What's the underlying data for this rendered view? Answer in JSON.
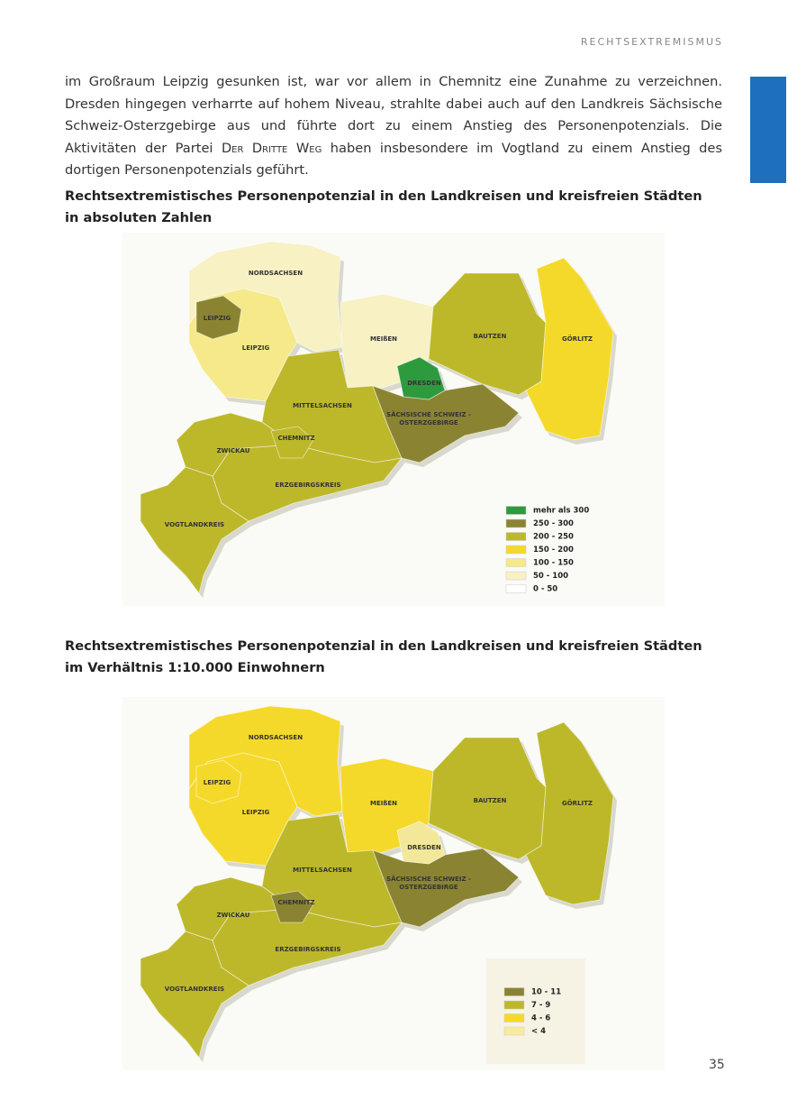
{
  "header": {
    "section": "RECHTSEXTREMISMUS"
  },
  "body": {
    "paragraph": [
      "im Großraum Leipzig gesunken ist, war vor allem in Chemnitz eine Zunahme zu verzeichnen. Dresden hingegen verharrte auf hohem Niveau, strahlte dabei auch auf den Landkreis Sächsische Schweiz-Osterzgebirge aus und führte dort zu einem Anstieg des Personenpotenzials. Die Aktivitäten der Partei ",
      "Der Dritte Weg",
      " haben insbesondere im Vogtland zu einem Anstieg des dortigen Personenpotenzials geführt."
    ]
  },
  "maps": [
    {
      "title": [
        "Rechtsextremistisches Personenpotenzial in den Landkreisen und kreisfreien Städten",
        "in absoluten Zahlen"
      ],
      "regions": [
        "NORDSACHSEN",
        "LEIPZIG",
        "LEIPZIG",
        "MEIßEN",
        "BAUTZEN",
        "GÖRLITZ",
        "DRESDEN",
        "SÄCHSISCHE SCHWEIZ -",
        "OSTERZGEBIRGE",
        "MITTELSACHSEN",
        "CHEMNITZ",
        "ZWICKAU",
        "ERZGEBIRGSKREIS",
        "VOGTLANDKREIS"
      ],
      "legend": [
        "mehr als 300",
        "250 - 300",
        "200 - 250",
        "150 - 200",
        "100 - 150",
        "50 - 100",
        "0 - 50"
      ]
    },
    {
      "title": [
        "Rechtsextremistisches Personenpotenzial in den Landkreisen und kreisfreien Städten",
        "im Verhältnis 1:10.000 Einwohnern"
      ],
      "regions": [
        "NORDSACHSEN",
        "LEIPZIG",
        "LEIPZIG",
        "MEIßEN",
        "BAUTZEN",
        "GÖRLITZ",
        "DRESDEN",
        "SÄCHSISCHE SCHWEIZ -",
        "OSTERZGEBIRGE",
        "MITTELSACHSEN",
        "CHEMNITZ",
        "ZWICKAU",
        "ERZGEBIRGSKREIS",
        "VOGTLANDKREIS"
      ],
      "legend": [
        "10 - 11",
        "7 - 9",
        "4 - 6",
        "< 4"
      ]
    }
  ],
  "footer": {
    "page_number": "35"
  }
}
